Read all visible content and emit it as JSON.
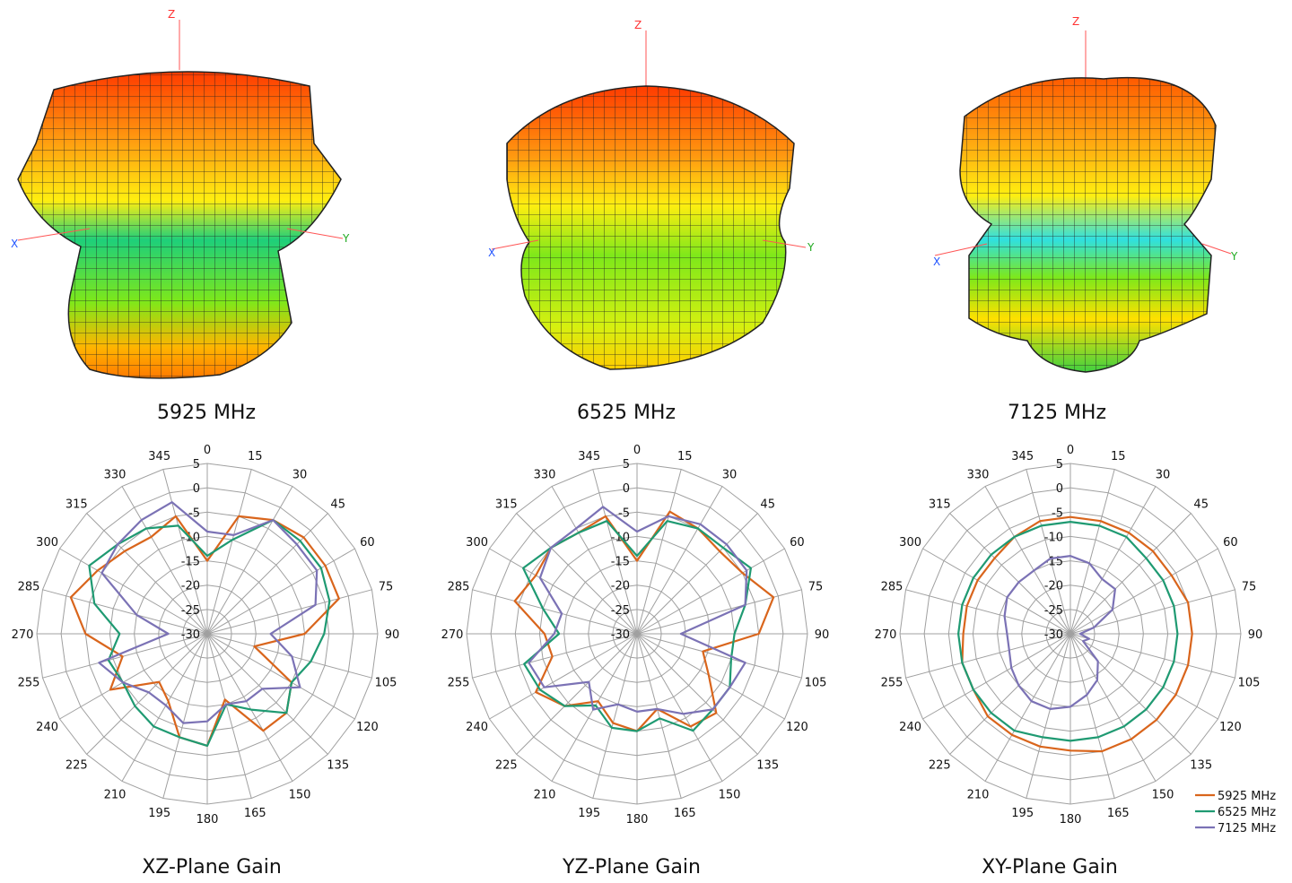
{
  "patterns_3d": [
    {
      "frequency_label": "5925 MHz",
      "axes": {
        "x": "X",
        "y": "Y",
        "z": "Z"
      }
    },
    {
      "frequency_label": "6525 MHz",
      "axes": {
        "x": "X",
        "y": "Y",
        "z": "Z"
      }
    },
    {
      "frequency_label": "7125 MHz",
      "axes": {
        "x": "X",
        "y": "Y",
        "z": "Z"
      }
    }
  ],
  "colors": {
    "5925 MHz": "#d9651c",
    "6525 MHz": "#1f9a72",
    "7125 MHz": "#7b72b5",
    "grid": "#a0a0a0",
    "gradient_high": "#ff3300",
    "gradient_mid": "#ffee00",
    "gradient_low": "#22cc22",
    "gradient_min": "#33dddd"
  },
  "chart_data": [
    {
      "type": "radar",
      "title": "XZ-Plane Gain",
      "angle_ticks": [
        0,
        15,
        30,
        45,
        60,
        75,
        90,
        105,
        120,
        135,
        150,
        165,
        180,
        195,
        210,
        225,
        240,
        255,
        270,
        285,
        300,
        315,
        330,
        345
      ],
      "radial_ticks": [
        5,
        0,
        -5,
        -10,
        -15,
        -20,
        -25,
        -30
      ],
      "rlim": [
        -30,
        5
      ],
      "series": [
        {
          "name": "5925 MHz",
          "values": [
            -15,
            -5,
            -3,
            -2,
            -2,
            -2,
            -10,
            -20,
            -10,
            -7,
            -7,
            -16,
            -7,
            -8,
            -14,
            -16,
            -7,
            -12,
            -5,
            -1,
            -4,
            -6,
            -7,
            -5
          ]
        },
        {
          "name": "6525 MHz",
          "values": [
            -14,
            -10,
            -3,
            -3,
            -3,
            -4,
            -6,
            -8,
            -10,
            -7,
            -12,
            -15,
            -7,
            -8,
            -8,
            -9,
            -10,
            -9,
            -12,
            -6,
            -2,
            -4,
            -5,
            -7
          ]
        },
        {
          "name": "7125 MHz",
          "values": [
            -9,
            -9,
            -3,
            -4,
            -4,
            -7,
            -17,
            -12,
            -8,
            -14,
            -14,
            -15,
            -12,
            -11,
            -13,
            -13,
            -10,
            -7,
            -22,
            -15,
            -5,
            -4,
            -3,
            -2
          ]
        }
      ]
    },
    {
      "type": "radar",
      "title": "YZ-Plane Gain",
      "angle_ticks": [
        0,
        15,
        30,
        45,
        60,
        75,
        90,
        105,
        120,
        135,
        150,
        165,
        180,
        195,
        210,
        225,
        240,
        255,
        270,
        285,
        300,
        315,
        330,
        345
      ],
      "radial_ticks": [
        5,
        0,
        -5,
        -10,
        -15,
        -20,
        -25,
        -30
      ],
      "rlim": [
        -30,
        5
      ],
      "series": [
        {
          "name": "5925 MHz",
          "values": [
            -15,
            -4,
            -5,
            -6,
            -5,
            -1,
            -5,
            -16,
            -13,
            -7,
            -8,
            -14,
            -10,
            -11,
            -14,
            -9,
            -6,
            -12,
            -11,
            -4,
            -6,
            -5,
            -6,
            -5
          ]
        },
        {
          "name": "6525 MHz",
          "values": [
            -14,
            -6,
            -5,
            -5,
            -3,
            -7,
            -10,
            -10,
            -8,
            -8,
            -7,
            -12,
            -10,
            -10,
            -13,
            -9,
            -7,
            -6,
            -14,
            -10,
            -3,
            -5,
            -6,
            -6
          ]
        },
        {
          "name": "7125 MHz",
          "values": [
            -9,
            -5,
            -4,
            -4,
            -4,
            -7,
            -21,
            -7,
            -8,
            -8,
            -11,
            -14,
            -14,
            -15,
            -12,
            -16,
            -8,
            -7,
            -13,
            -14,
            -7,
            -5,
            -5,
            -3
          ]
        }
      ]
    },
    {
      "type": "radar",
      "title": "XY-Plane Gain",
      "angle_ticks": [
        0,
        15,
        30,
        45,
        60,
        75,
        90,
        105,
        120,
        135,
        150,
        165,
        180,
        195,
        210,
        225,
        240,
        255,
        270,
        285,
        300,
        315,
        330,
        345
      ],
      "radial_ticks": [
        5,
        0,
        -5,
        -10,
        -15,
        -20,
        -25,
        -30
      ],
      "rlim": [
        -30,
        5
      ],
      "series": [
        {
          "name": "5925 MHz",
          "values": [
            -6,
            -6,
            -6,
            -6,
            -6,
            -5,
            -5,
            -5,
            -5,
            -5,
            -5,
            -5,
            -6,
            -6,
            -6,
            -6,
            -7,
            -7,
            -8,
            -8,
            -8,
            -8,
            -7,
            -6
          ]
        },
        {
          "name": "6525 MHz",
          "values": [
            -7,
            -7,
            -7,
            -8,
            -8,
            -8,
            -8,
            -8,
            -8,
            -8,
            -8,
            -8,
            -8,
            -8,
            -7,
            -7,
            -7,
            -7,
            -7,
            -7,
            -7,
            -7,
            -7,
            -7
          ]
        },
        {
          "name": "7125 MHz",
          "values": [
            -14,
            -15,
            -17,
            -17,
            -20,
            -25,
            -28,
            -26,
            -27,
            -22,
            -19,
            -17,
            -15,
            -14,
            -14,
            -15,
            -16,
            -17,
            -17,
            -16,
            -15,
            -15,
            -15,
            -14
          ]
        }
      ],
      "legend_position": "bottom-right"
    }
  ]
}
